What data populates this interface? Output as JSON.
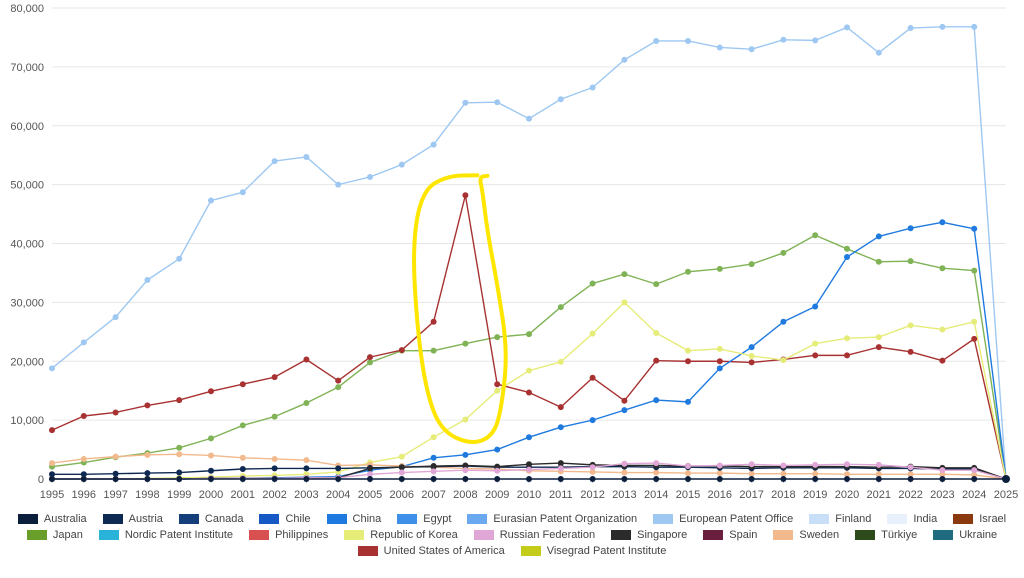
{
  "chart_data": {
    "type": "line",
    "title": "",
    "xlabel": "",
    "ylabel": "",
    "x": [
      1995,
      1996,
      1997,
      1998,
      1999,
      2000,
      2001,
      2002,
      2003,
      2004,
      2005,
      2006,
      2007,
      2008,
      2009,
      2010,
      2011,
      2012,
      2013,
      2014,
      2015,
      2016,
      2017,
      2018,
      2019,
      2020,
      2021,
      2022,
      2023,
      2024,
      2025
    ],
    "x_tick_labels": [
      "1995",
      "1996",
      "1997",
      "1998",
      "1999",
      "2000",
      "2001",
      "2002",
      "2003",
      "2004",
      "2005",
      "2006",
      "2007",
      "2008",
      "2009",
      "2010",
      "2011",
      "2012",
      "2013",
      "2014",
      "2015",
      "2016",
      "2017",
      "2018",
      "2019",
      "2020",
      "2021",
      "2022",
      "2023",
      "2024",
      "2025"
    ],
    "ylim": [
      0,
      80000
    ],
    "y_ticks": [
      0,
      10000,
      20000,
      30000,
      40000,
      50000,
      60000,
      70000,
      80000
    ],
    "y_tick_labels": [
      "0",
      "10,000",
      "20,000",
      "30,000",
      "40,000",
      "50,000",
      "60,000",
      "70,000",
      "80,000"
    ],
    "grid": true,
    "legend_position": "bottom",
    "annotation": {
      "type": "hand-drawn-ellipse",
      "color": "#ffe600",
      "around": "United States of America peak 2007-2009"
    },
    "series": [
      {
        "name": "European Patent Office",
        "color": "#9ec8f2",
        "marker": true,
        "values": [
          18800,
          23200,
          27500,
          33800,
          37400,
          47300,
          48700,
          54000,
          54700,
          50000,
          51300,
          53400,
          56800,
          63900,
          64000,
          61200,
          64500,
          66500,
          71200,
          74400,
          74400,
          73300,
          73000,
          74600,
          74500,
          76700,
          72400,
          76600,
          76800,
          76800,
          0
        ]
      },
      {
        "name": "Japan",
        "color": "#7fb356",
        "marker": true,
        "values": [
          2100,
          2800,
          3700,
          4400,
          5300,
          6900,
          9100,
          10600,
          12900,
          15600,
          19800,
          21800,
          21800,
          23000,
          24100,
          24600,
          29200,
          33200,
          34800,
          33100,
          35200,
          35700,
          36500,
          38400,
          41400,
          39100,
          36900,
          37000,
          35800,
          35400,
          0
        ]
      },
      {
        "name": "United States of America",
        "color": "#a83232",
        "marker": true,
        "values": [
          8300,
          10700,
          11300,
          12500,
          13400,
          14900,
          16100,
          17300,
          20300,
          16700,
          20700,
          21900,
          26700,
          48200,
          16100,
          14700,
          12200,
          17200,
          13300,
          20100,
          20000,
          20000,
          19800,
          20300,
          21000,
          21000,
          22400,
          21600,
          20100,
          23800,
          0
        ]
      },
      {
        "name": "China",
        "color": "#1f7ae0",
        "marker": true,
        "values": [
          0,
          0,
          0,
          0,
          0,
          100,
          100,
          200,
          300,
          400,
          1500,
          2100,
          3600,
          4100,
          5000,
          7100,
          8800,
          10000,
          11700,
          13400,
          13100,
          18800,
          22400,
          26700,
          29300,
          37700,
          41200,
          42600,
          43600,
          42500,
          0
        ]
      },
      {
        "name": "Republic of Korea",
        "color": "#e6ec78",
        "marker": true,
        "values": [
          0,
          0,
          0,
          100,
          200,
          300,
          500,
          600,
          800,
          1200,
          2800,
          3800,
          7100,
          10100,
          15000,
          18400,
          19900,
          24700,
          30000,
          24800,
          21800,
          22100,
          20900,
          20200,
          23000,
          23900,
          24100,
          26100,
          25400,
          26700,
          0
        ]
      },
      {
        "name": "Sweden",
        "color": "#f2b98c",
        "marker": true,
        "values": [
          2700,
          3400,
          3800,
          4100,
          4200,
          4000,
          3600,
          3400,
          3200,
          2300,
          2400,
          2200,
          2000,
          1800,
          1700,
          1400,
          1300,
          1200,
          1100,
          1100,
          1000,
          1000,
          900,
          900,
          900,
          800,
          800,
          800,
          800,
          700,
          0
        ]
      },
      {
        "name": "Austria",
        "color": "#0f2a52",
        "marker": true,
        "values": [
          800,
          800,
          900,
          1000,
          1100,
          1400,
          1700,
          1800,
          1800,
          1800,
          1900,
          2000,
          2100,
          2200,
          2000,
          2000,
          2000,
          2100,
          2100,
          2000,
          2000,
          1900,
          1800,
          1900,
          1900,
          1900,
          1800,
          1800,
          1700,
          1700,
          0
        ]
      },
      {
        "name": "Singapore",
        "color": "#2b2b2b",
        "marker": true,
        "values": [
          0,
          0,
          0,
          0,
          0,
          100,
          100,
          100,
          200,
          200,
          1800,
          2000,
          2200,
          2300,
          2100,
          2500,
          2700,
          2400,
          2300,
          2300,
          2200,
          2200,
          2100,
          2100,
          2100,
          2100,
          2000,
          2100,
          1900,
          1900,
          0
        ]
      },
      {
        "name": "Russian Federation",
        "color": "#e0a7d6",
        "marker": true,
        "values": [
          0,
          0,
          0,
          0,
          0,
          100,
          100,
          100,
          200,
          200,
          800,
          1100,
          1300,
          1500,
          1400,
          1600,
          1800,
          2000,
          2600,
          2700,
          2200,
          2300,
          2500,
          2300,
          2400,
          2500,
          2400,
          2000,
          1500,
          1500,
          0
        ]
      },
      {
        "name": "Australia",
        "color": "#0b1f3d",
        "marker": true,
        "values": [
          0,
          0,
          0,
          0,
          0,
          0,
          0,
          0,
          0,
          0,
          0,
          0,
          0,
          0,
          0,
          0,
          0,
          0,
          0,
          0,
          0,
          0,
          0,
          0,
          0,
          0,
          0,
          0,
          0,
          0,
          0
        ]
      }
    ],
    "legend": [
      {
        "name": "Australia",
        "color": "#0b1f3d"
      },
      {
        "name": "Austria",
        "color": "#0f2a52"
      },
      {
        "name": "Canada",
        "color": "#153f7a"
      },
      {
        "name": "Chile",
        "color": "#1659c4"
      },
      {
        "name": "China",
        "color": "#1f7ae0"
      },
      {
        "name": "Egypt",
        "color": "#3d8fe8"
      },
      {
        "name": "Eurasian Patent Organization",
        "color": "#6aa9ef"
      },
      {
        "name": "European Patent Office",
        "color": "#9ec8f2"
      },
      {
        "name": "Finland",
        "color": "#c9dff7"
      },
      {
        "name": "India",
        "color": "#e8f1fb"
      },
      {
        "name": "Israel",
        "color": "#8b3a0f"
      },
      {
        "name": "Japan",
        "color": "#6a9e2a"
      },
      {
        "name": "Nordic Patent Institute",
        "color": "#29b3d9"
      },
      {
        "name": "Philippines",
        "color": "#d95050"
      },
      {
        "name": "Republic of Korea",
        "color": "#e6ec78"
      },
      {
        "name": "Russian Federation",
        "color": "#e0a7d6"
      },
      {
        "name": "Singapore",
        "color": "#2b2b2b"
      },
      {
        "name": "Spain",
        "color": "#6b1f3f"
      },
      {
        "name": "Sweden",
        "color": "#f2b98c"
      },
      {
        "name": "Türkiye",
        "color": "#2d4a1a"
      },
      {
        "name": "Ukraine",
        "color": "#1f6b80"
      },
      {
        "name": "United States of America",
        "color": "#a83232"
      },
      {
        "name": "Visegrad Patent Institute",
        "color": "#c4cc1a"
      }
    ]
  }
}
